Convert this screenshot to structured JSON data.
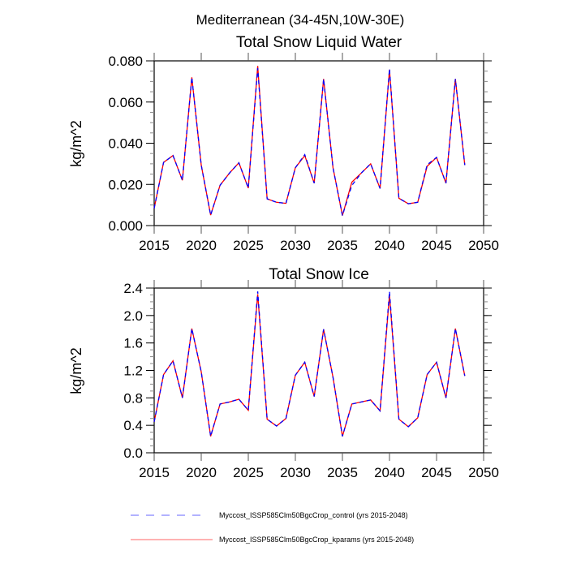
{
  "figure_title": "Mediterranean (34-45N,10W-30E)",
  "legend": {
    "position": "bottom",
    "entries": [
      {
        "label": "Myccost_ISSP585Clm50BgcCrop_control (yrs 2015-2048)",
        "color": "#0000ff",
        "style": "dashed"
      },
      {
        "label": "Myccost_ISSP585Clm50BgcCrop_kparams (yrs 2015-2048)",
        "color": "#ff0000",
        "style": "solid"
      }
    ]
  },
  "chart_data": [
    {
      "type": "line",
      "title": "Total Snow Liquid Water",
      "xlabel": "",
      "ylabel": "kg/m^2",
      "xlim": [
        2015,
        2050
      ],
      "ylim": [
        0.0,
        0.08
      ],
      "xticks": [
        2015,
        2020,
        2025,
        2030,
        2035,
        2040,
        2045,
        2050
      ],
      "xtick_labels": [
        "2015",
        "2020",
        "2025",
        "2030",
        "2035",
        "2040",
        "2045",
        "2050"
      ],
      "yticks": [
        0.0,
        0.02,
        0.04,
        0.06,
        0.08
      ],
      "ytick_labels": [
        "0.000",
        "0.020",
        "0.040",
        "0.060",
        "0.080"
      ],
      "y_minor_step": 0.005,
      "grid": false,
      "x": [
        2015,
        2016,
        2017,
        2018,
        2019,
        2020,
        2021,
        2022,
        2023,
        2024,
        2025,
        2026,
        2027,
        2028,
        2029,
        2030,
        2031,
        2032,
        2033,
        2034,
        2035,
        2036,
        2037,
        2038,
        2039,
        2040,
        2041,
        2042,
        2043,
        2044,
        2045,
        2046,
        2047,
        2048
      ],
      "series": [
        {
          "name": "Myccost_ISSP585Clm50BgcCrop_control (yrs 2015-2048)",
          "color": "#0000ff",
          "style": "dashed",
          "values": [
            0.0084,
            0.0307,
            0.034,
            0.022,
            0.072,
            0.0294,
            0.0051,
            0.0196,
            0.0255,
            0.0305,
            0.0182,
            0.0765,
            0.013,
            0.0113,
            0.0108,
            0.0281,
            0.0345,
            0.0206,
            0.0712,
            0.0281,
            0.0049,
            0.0195,
            0.0255,
            0.03,
            0.018,
            0.0762,
            0.0133,
            0.0106,
            0.0113,
            0.0295,
            0.0331,
            0.0206,
            0.0712,
            0.0294
          ]
        },
        {
          "name": "Myccost_ISSP585Clm50BgcCrop_kparams (yrs 2015-2048)",
          "color": "#ff0000",
          "style": "solid",
          "values": [
            0.0084,
            0.0307,
            0.034,
            0.022,
            0.072,
            0.0294,
            0.0051,
            0.0196,
            0.0255,
            0.0305,
            0.0182,
            0.0775,
            0.013,
            0.0113,
            0.0108,
            0.0281,
            0.034,
            0.0206,
            0.0712,
            0.0281,
            0.0049,
            0.0211,
            0.0255,
            0.03,
            0.018,
            0.0757,
            0.0133,
            0.0106,
            0.0113,
            0.0288,
            0.0331,
            0.0206,
            0.0712,
            0.0294
          ]
        }
      ]
    },
    {
      "type": "line",
      "title": "Total Snow Ice",
      "xlabel": "",
      "ylabel": "kg/m^2",
      "xlim": [
        2015,
        2050
      ],
      "ylim": [
        0.0,
        2.4
      ],
      "xticks": [
        2015,
        2020,
        2025,
        2030,
        2035,
        2040,
        2045,
        2050
      ],
      "xtick_labels": [
        "2015",
        "2020",
        "2025",
        "2030",
        "2035",
        "2040",
        "2045",
        "2050"
      ],
      "yticks": [
        0.0,
        0.4,
        0.8,
        1.2,
        1.6,
        2.0,
        2.4
      ],
      "ytick_labels": [
        "0.0",
        "0.4",
        "0.8",
        "1.2",
        "1.6",
        "2.0",
        "2.4"
      ],
      "y_minor_step": 0.1,
      "grid": false,
      "x": [
        2015,
        2016,
        2017,
        2018,
        2019,
        2020,
        2021,
        2022,
        2023,
        2024,
        2025,
        2026,
        2027,
        2028,
        2029,
        2030,
        2031,
        2032,
        2033,
        2034,
        2035,
        2036,
        2037,
        2038,
        2039,
        2040,
        2041,
        2042,
        2043,
        2044,
        2045,
        2046,
        2047,
        2048
      ],
      "series": [
        {
          "name": "Myccost_ISSP585Clm50BgcCrop_control (yrs 2015-2048)",
          "color": "#0000ff",
          "style": "dashed",
          "values": [
            0.45,
            1.14,
            1.34,
            0.8,
            1.81,
            1.18,
            0.24,
            0.71,
            0.74,
            0.78,
            0.62,
            2.35,
            0.49,
            0.39,
            0.5,
            1.13,
            1.32,
            0.82,
            1.8,
            1.1,
            0.24,
            0.71,
            0.74,
            0.77,
            0.61,
            2.35,
            0.49,
            0.38,
            0.51,
            1.14,
            1.32,
            0.8,
            1.81,
            1.12
          ]
        },
        {
          "name": "Myccost_ISSP585Clm50BgcCrop_kparams (yrs 2015-2048)",
          "color": "#ff0000",
          "style": "solid",
          "values": [
            0.45,
            1.14,
            1.34,
            0.8,
            1.81,
            1.18,
            0.24,
            0.71,
            0.74,
            0.78,
            0.62,
            2.31,
            0.49,
            0.39,
            0.5,
            1.13,
            1.32,
            0.82,
            1.8,
            1.1,
            0.24,
            0.71,
            0.74,
            0.77,
            0.61,
            2.3,
            0.49,
            0.38,
            0.51,
            1.14,
            1.32,
            0.8,
            1.81,
            1.12
          ]
        }
      ]
    }
  ]
}
